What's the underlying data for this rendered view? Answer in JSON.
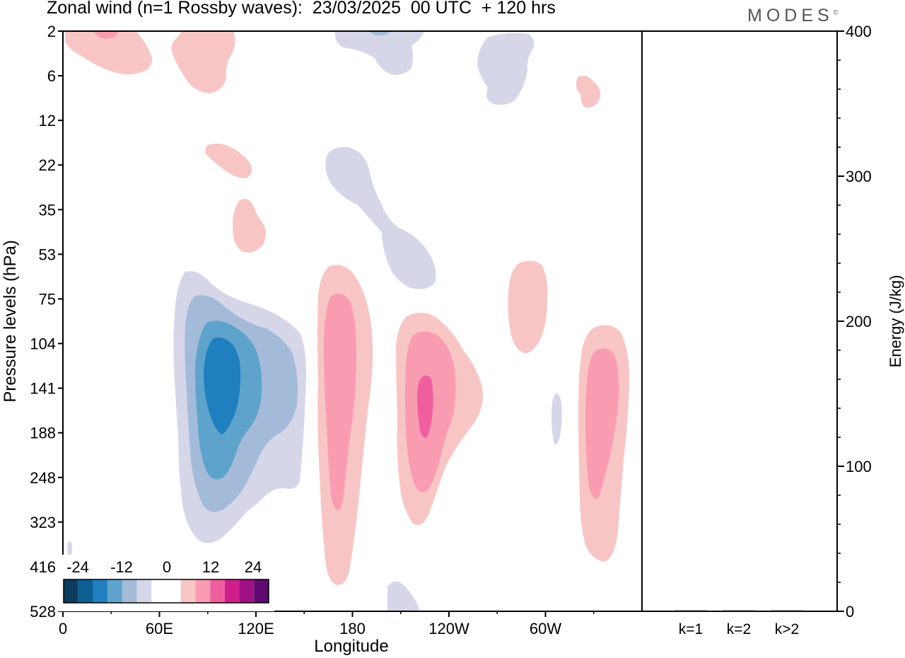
{
  "header": {
    "title": "Zonal wind (n=1 Rossby waves):  23/03/2025  00 UTC  + 120 hrs",
    "brand": "MODES",
    "brand_mark": "©"
  },
  "colors": {
    "neg": [
      "#0b3c5d",
      "#0b5f91",
      "#1f7fbf",
      "#5ea3cc",
      "#a3bbd9",
      "#d5d6e8"
    ],
    "zero": "#ffffff",
    "pos": [
      "#f8c5c5",
      "#f99cb2",
      "#ef5f9f",
      "#cf1f8c",
      "#9e1185",
      "#5e0a70"
    ]
  },
  "chart_data": [
    {
      "type": "heatmap",
      "title": "Zonal wind (n=1 Rossby waves):  23/03/2025  00 UTC  + 120 hrs",
      "xlabel": "Longitude",
      "ylabel": "Pressure levels (hPa)",
      "x_ticks": [
        "0",
        "60E",
        "120E",
        "180",
        "120W",
        "60W"
      ],
      "x_tick_values": [
        0,
        60,
        120,
        180,
        240,
        300
      ],
      "xlim": [
        0,
        360
      ],
      "y_ticks": [
        "2",
        "6",
        "12",
        "22",
        "35",
        "53",
        "75",
        "104",
        "141",
        "188",
        "248",
        "323",
        "416",
        "528"
      ],
      "colorbar": {
        "labels": [
          "-24",
          "-12",
          "0",
          "12",
          "24"
        ],
        "levels": [
          -30,
          -25,
          -20,
          -15,
          -10,
          -5,
          0,
          5,
          10,
          15,
          20,
          25,
          30
        ]
      },
      "features": [
        {
          "sign": "neg",
          "levels": [
            1,
            2,
            3,
            4
          ],
          "center_lon": 95,
          "center_level": "141",
          "top_level": "53",
          "bottom_level": "323",
          "peak": -22
        },
        {
          "sign": "pos",
          "levels": [
            1,
            2
          ],
          "center_lon": 172,
          "center_level": "188",
          "top_level": "53",
          "bottom_level": "528",
          "peak": 13
        },
        {
          "sign": "pos",
          "levels": [
            1,
            2,
            3
          ],
          "center_lon": 215,
          "center_level": "188",
          "top_level": "104",
          "bottom_level": "323",
          "peak": 17
        },
        {
          "sign": "pos",
          "levels": [
            1,
            2
          ],
          "center_lon": 330,
          "center_level": "188",
          "top_level": "104",
          "bottom_level": "416",
          "peak": 13
        },
        {
          "sign": "pos",
          "levels": [
            1
          ],
          "center_lon": 282,
          "center_level": "75",
          "top_level": "53",
          "bottom_level": "104",
          "peak": 7
        },
        {
          "sign": "neg",
          "levels": [
            1
          ],
          "center_lon": 200,
          "center_level": "35",
          "top_level": "22",
          "bottom_level": "53",
          "peak": -7
        }
      ]
    },
    {
      "type": "bar",
      "categories": [
        "k=1",
        "k=2",
        "k>2"
      ],
      "values": [
        0.4,
        0.4,
        0.4
      ],
      "ylabel": "Energy (J/kg)",
      "ylim": [
        0,
        400
      ],
      "y_ticks": [
        0,
        100,
        200,
        300,
        400
      ]
    }
  ]
}
